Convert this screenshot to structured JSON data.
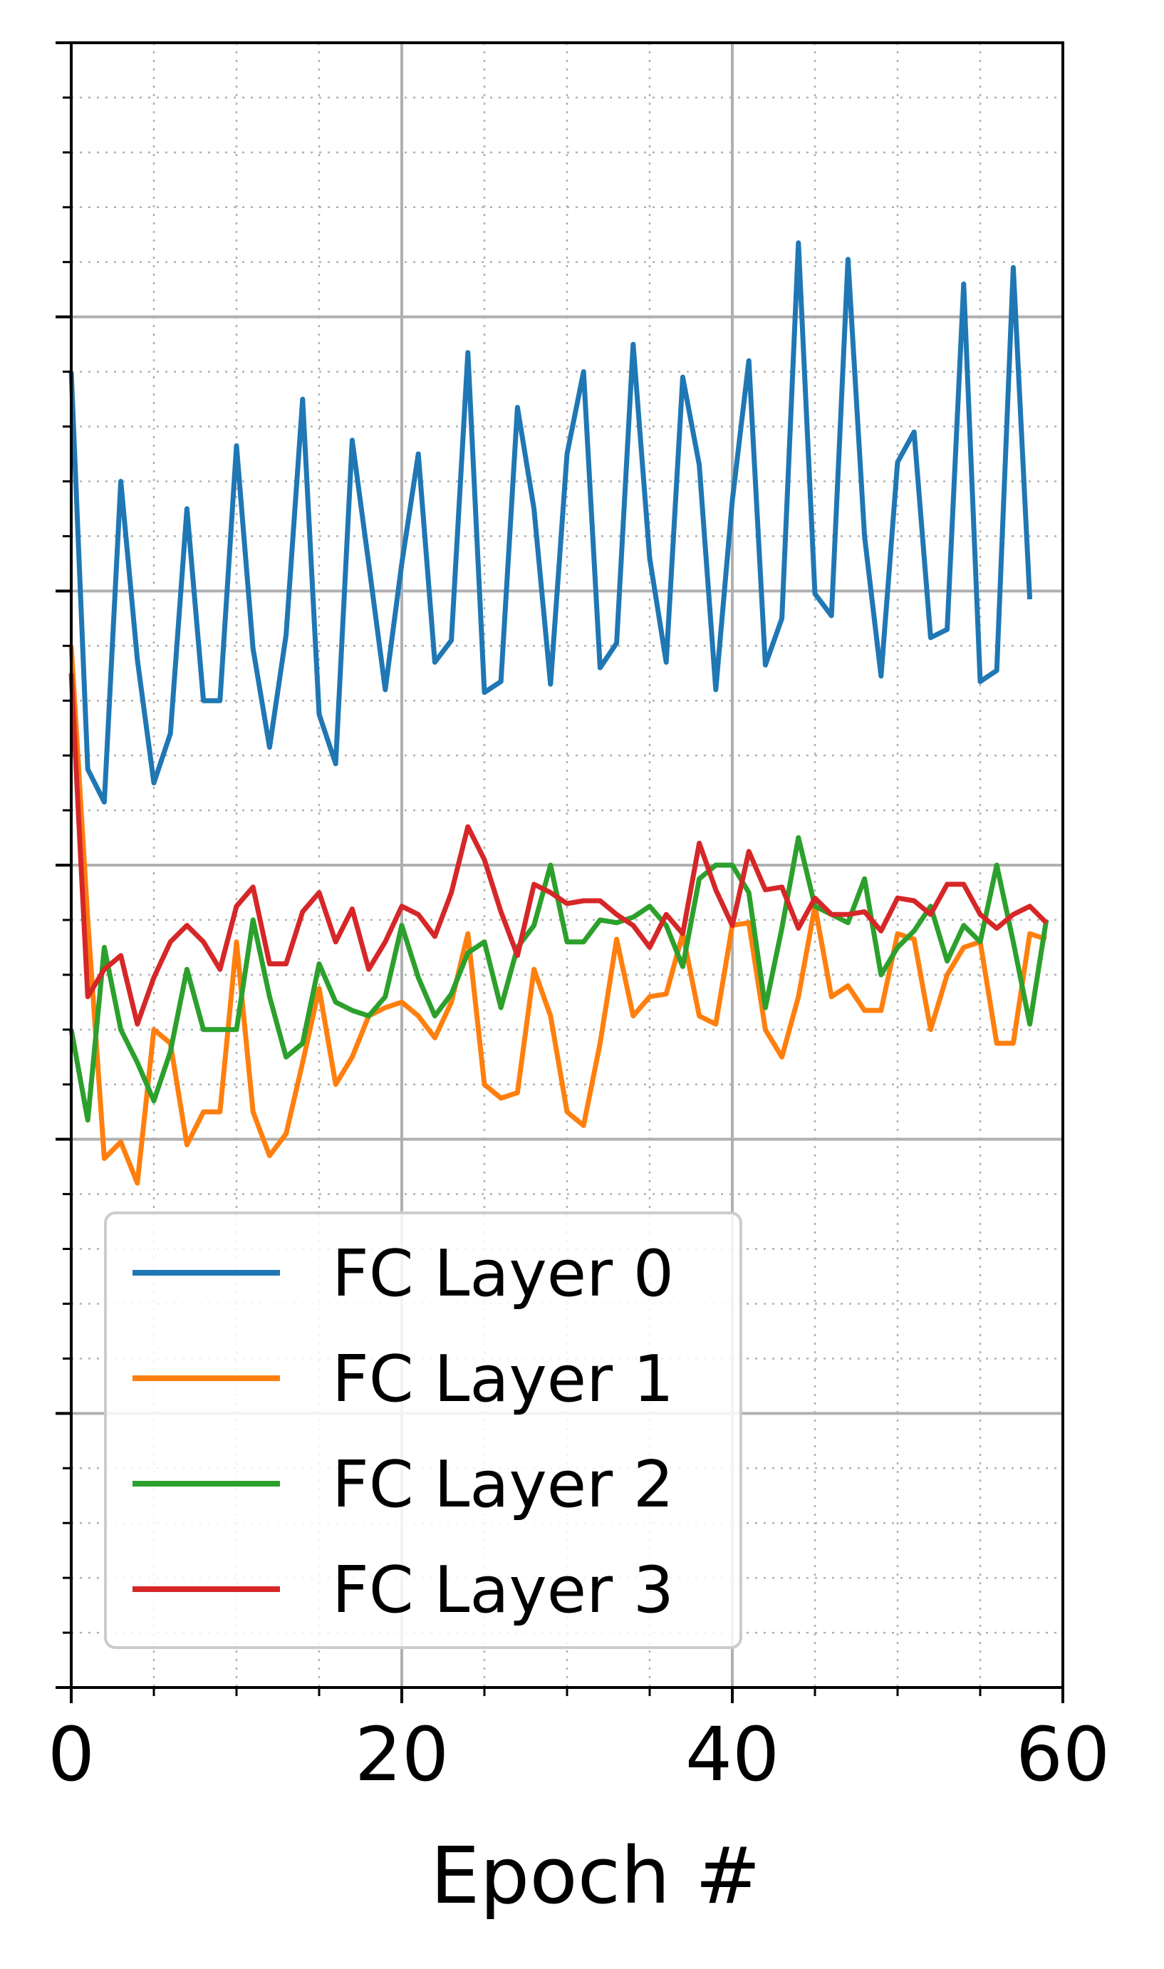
{
  "chart_data": {
    "type": "line",
    "title": "",
    "xlabel": "Epoch #",
    "ylabel": "",
    "xlim": [
      0,
      60
    ],
    "ylim": [
      0,
      6
    ],
    "x_ticks": [
      "0",
      "20",
      "40",
      "60"
    ],
    "y_tick_labels_visible": false,
    "grid": true,
    "minor_grid": true,
    "legend_position": "lower-left",
    "x": [
      0,
      1,
      2,
      3,
      4,
      5,
      6,
      7,
      8,
      9,
      10,
      11,
      12,
      13,
      14,
      15,
      16,
      17,
      18,
      19,
      20,
      21,
      22,
      23,
      24,
      25,
      26,
      27,
      28,
      29,
      30,
      31,
      32,
      33,
      34,
      35,
      36,
      37,
      38,
      39,
      40,
      41,
      42,
      43,
      44,
      45,
      46,
      47,
      48,
      49,
      50,
      51,
      52,
      53,
      54,
      55,
      56,
      57,
      58,
      59
    ],
    "series": [
      {
        "name": "FC Layer 0",
        "color": "#1f77b4",
        "values": [
          4.8,
          3.35,
          3.23,
          4.4,
          3.75,
          3.3,
          3.48,
          4.3,
          3.6,
          3.6,
          4.53,
          3.79,
          3.43,
          3.84,
          4.7,
          3.55,
          3.37,
          4.55,
          4.1,
          3.64,
          4.1,
          4.5,
          3.74,
          3.82,
          4.87,
          3.63,
          3.67,
          4.67,
          4.3,
          3.66,
          4.5,
          4.8,
          3.72,
          3.81,
          4.9,
          4.12,
          3.74,
          4.78,
          4.46,
          3.64,
          4.33,
          4.84,
          3.73,
          3.9,
          5.27,
          3.99,
          3.91,
          5.21,
          4.2,
          3.69,
          4.47,
          4.58,
          3.83,
          3.86,
          5.12,
          3.67,
          3.71,
          5.18,
          3.97,
          null
        ]
      },
      {
        "name": "FC Layer 1",
        "color": "#ff7f0e",
        "values": [
          3.8,
          2.8,
          1.93,
          1.99,
          1.84,
          2.4,
          2.35,
          1.98,
          2.1,
          2.1,
          2.72,
          2.1,
          1.94,
          2.02,
          2.28,
          2.55,
          2.2,
          2.3,
          2.45,
          2.48,
          2.5,
          2.45,
          2.37,
          2.5,
          2.75,
          2.2,
          2.15,
          2.17,
          2.62,
          2.45,
          2.1,
          2.05,
          2.35,
          2.73,
          2.45,
          2.52,
          2.53,
          2.75,
          2.45,
          2.42,
          2.78,
          2.79,
          2.4,
          2.3,
          2.52,
          2.85,
          2.52,
          2.56,
          2.47,
          2.47,
          2.75,
          2.73,
          2.4,
          2.6,
          2.7,
          2.72,
          2.35,
          2.35,
          2.75,
          2.73
        ]
      },
      {
        "name": "FC Layer 2",
        "color": "#2ca02c",
        "values": [
          2.4,
          2.07,
          2.7,
          2.4,
          2.28,
          2.14,
          2.32,
          2.62,
          2.4,
          2.4,
          2.4,
          2.8,
          2.52,
          2.3,
          2.35,
          2.64,
          2.5,
          2.47,
          2.45,
          2.52,
          2.78,
          2.59,
          2.45,
          2.53,
          2.68,
          2.72,
          2.48,
          2.7,
          2.78,
          3.0,
          2.72,
          2.72,
          2.8,
          2.79,
          2.81,
          2.85,
          2.78,
          2.63,
          2.95,
          3.0,
          3.0,
          2.9,
          2.48,
          2.77,
          3.1,
          2.85,
          2.82,
          2.79,
          2.95,
          2.6,
          2.7,
          2.76,
          2.85,
          2.65,
          2.78,
          2.72,
          3.0,
          2.72,
          2.42,
          2.8
        ]
      },
      {
        "name": "FC Layer 3",
        "color": "#d62728",
        "values": [
          3.7,
          2.52,
          2.62,
          2.67,
          2.42,
          2.59,
          2.72,
          2.78,
          2.72,
          2.62,
          2.85,
          2.92,
          2.64,
          2.64,
          2.83,
          2.9,
          2.72,
          2.84,
          2.62,
          2.72,
          2.85,
          2.82,
          2.74,
          2.9,
          3.14,
          3.02,
          2.83,
          2.67,
          2.93,
          2.9,
          2.86,
          2.87,
          2.87,
          2.82,
          2.78,
          2.7,
          2.82,
          2.75,
          3.08,
          2.91,
          2.78,
          3.05,
          2.91,
          2.92,
          2.77,
          2.88,
          2.82,
          2.82,
          2.83,
          2.76,
          2.88,
          2.87,
          2.82,
          2.93,
          2.93,
          2.82,
          2.77,
          2.82,
          2.85,
          2.79
        ]
      }
    ]
  }
}
